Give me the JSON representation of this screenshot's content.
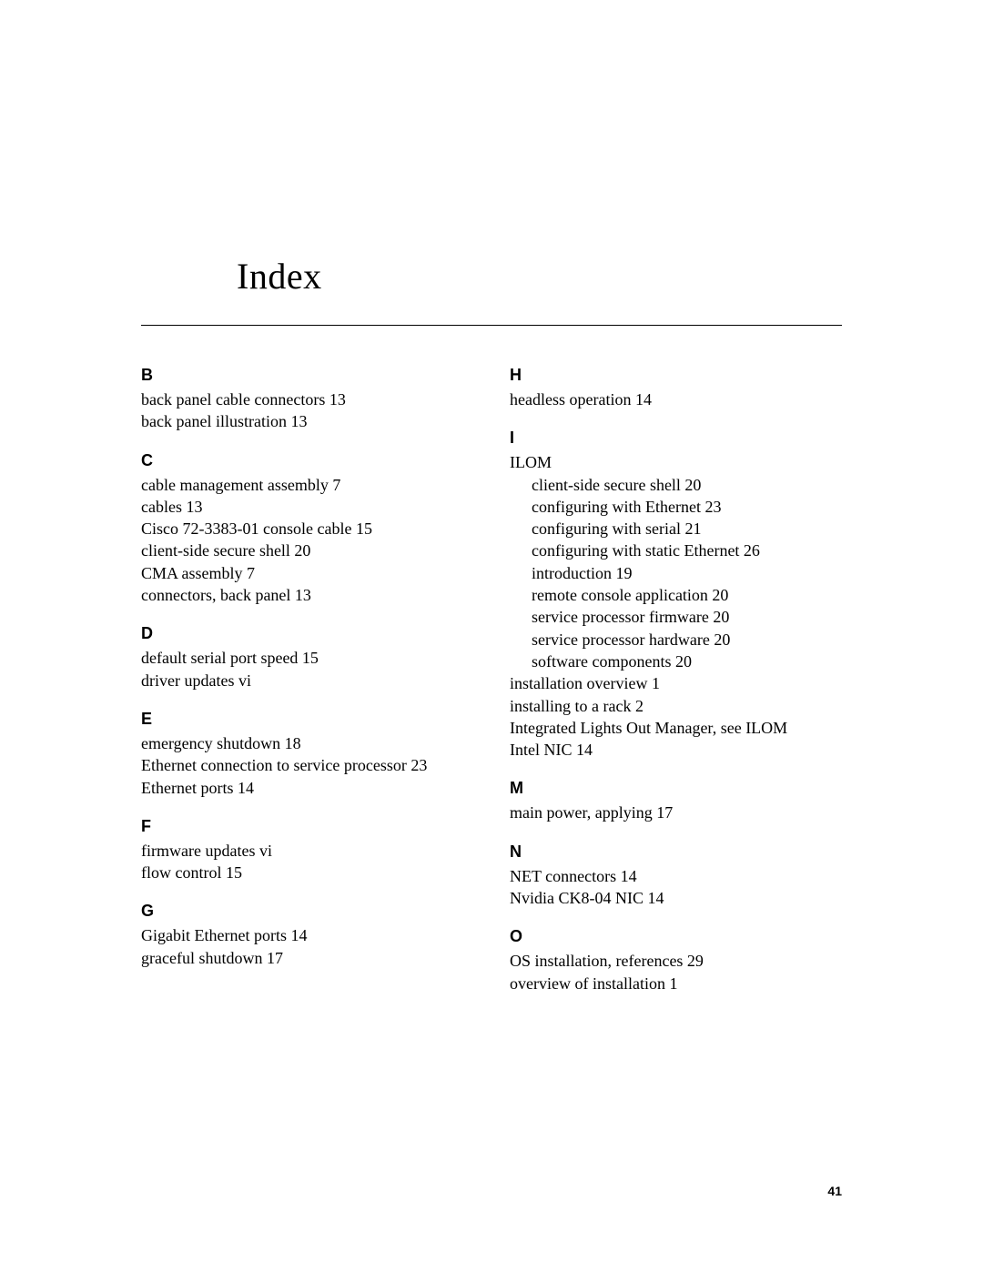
{
  "title": "Index",
  "page_number": "41",
  "left": {
    "B": [
      {
        "text": "back panel cable connectors 13"
      },
      {
        "text": "back panel illustration 13"
      }
    ],
    "C": [
      {
        "text": "cable management assembly 7"
      },
      {
        "text": "cables 13"
      },
      {
        "text": "Cisco 72-3383-01 console cable 15"
      },
      {
        "text": "client-side secure shell 20"
      },
      {
        "text": "CMA assembly 7"
      },
      {
        "text": "connectors, back panel 13"
      }
    ],
    "D": [
      {
        "text": "default serial port speed 15"
      },
      {
        "text": "driver updates vi"
      }
    ],
    "E": [
      {
        "text": "emergency shutdown 18"
      },
      {
        "text": "Ethernet connection to service processor 23"
      },
      {
        "text": "Ethernet ports 14"
      }
    ],
    "F": [
      {
        "text": "firmware updates vi"
      },
      {
        "text": "flow control 15"
      }
    ],
    "G": [
      {
        "text": "Gigabit Ethernet ports 14"
      },
      {
        "text": "graceful shutdown 17"
      }
    ]
  },
  "right": {
    "H": [
      {
        "text": "headless operation 14"
      }
    ],
    "I": {
      "lead": "ILOM",
      "subs": [
        "client-side secure shell 20",
        "configuring with Ethernet 23",
        "configuring with serial 21",
        "configuring with static Ethernet 26",
        "introduction 19",
        "remote console application 20",
        "service processor firmware 20",
        "service processor hardware 20",
        "software components 20"
      ],
      "rest": [
        "installation overview 1",
        "installing to a rack 2",
        "Integrated Lights Out Manager, see ILOM",
        "Intel NIC 14"
      ]
    },
    "M": [
      {
        "text": "main power, applying 17"
      }
    ],
    "N": [
      {
        "text": "NET connectors 14"
      },
      {
        "text": "Nvidia CK8-04 NIC 14"
      }
    ],
    "O": [
      {
        "text": "OS installation, references 29"
      },
      {
        "text": "overview of installation 1"
      }
    ]
  }
}
